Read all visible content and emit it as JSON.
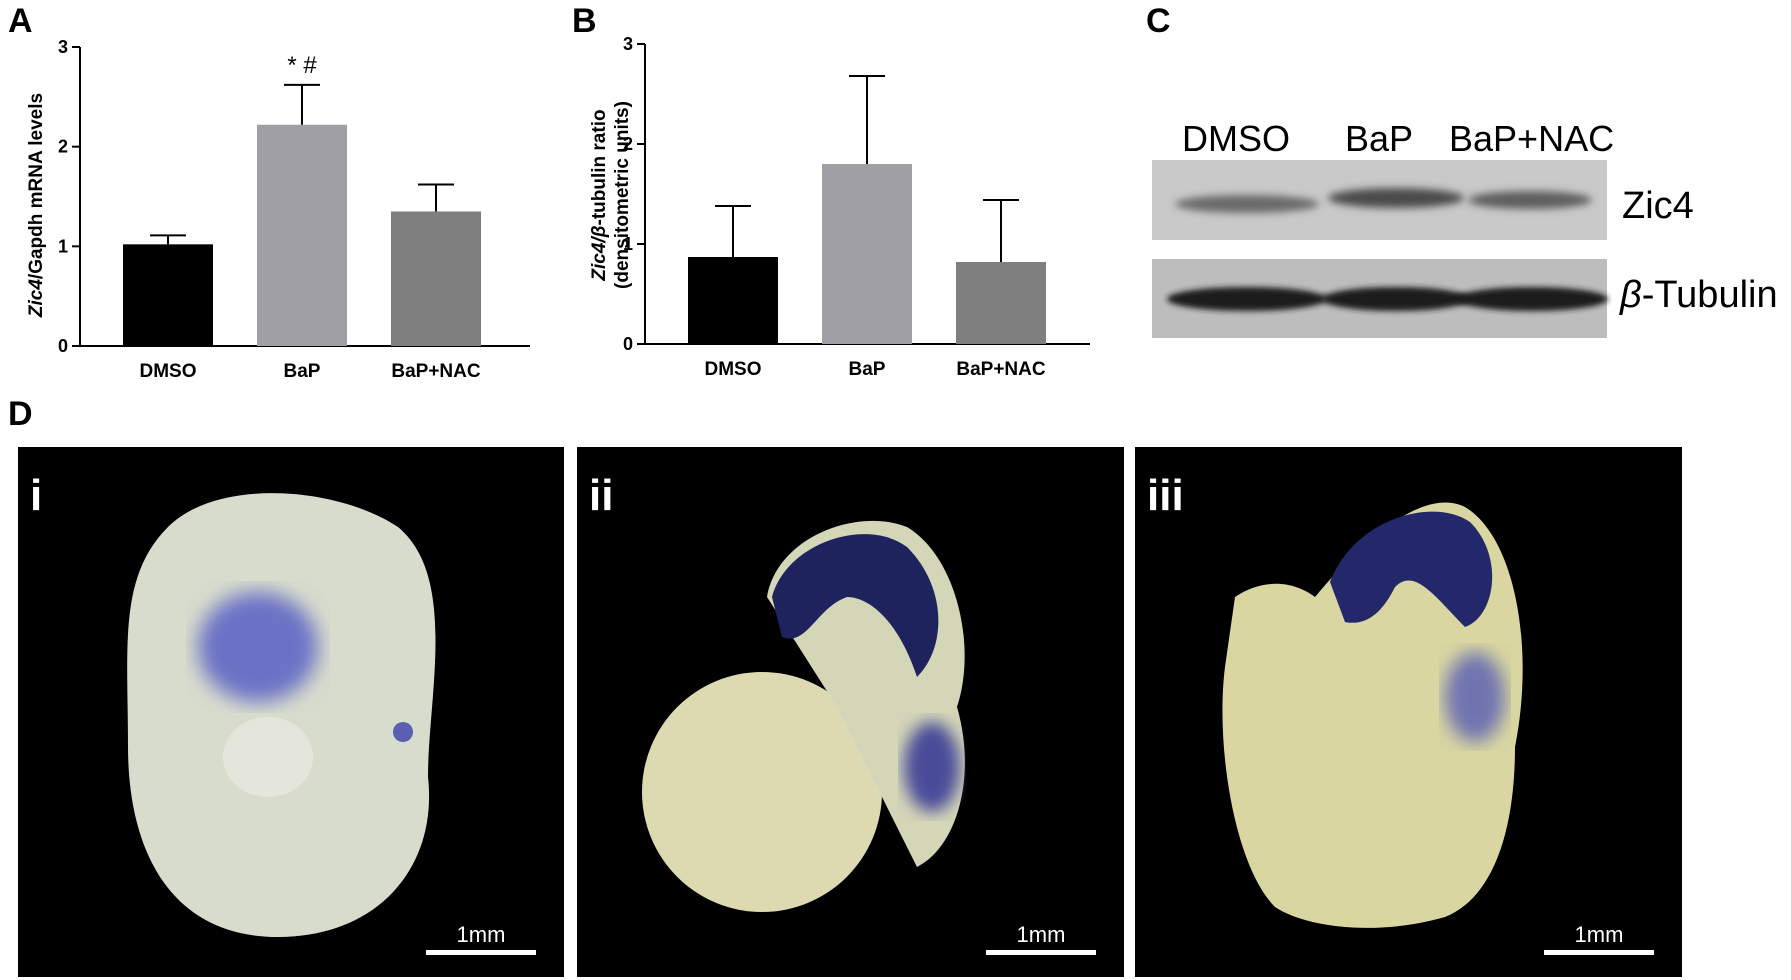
{
  "panels": {
    "a": "A",
    "b": "B",
    "c": "C",
    "d": "D"
  },
  "chart_data": [
    {
      "type": "bar",
      "categories": [
        "DMSO",
        "BaP",
        "BaP+NAC"
      ],
      "values": [
        1.02,
        2.22,
        1.35
      ],
      "errors": [
        0.09,
        0.4,
        0.27
      ],
      "ylabel_italic": "Zic4",
      "ylabel_rest": "/Gapdh mRNA levels",
      "ylim": [
        0,
        3
      ],
      "yticks": [
        "0",
        "1",
        "2",
        "3"
      ],
      "annotation": "* #",
      "bar_colors": [
        "#000000",
        "#a0a0a4",
        "#7f7f7f"
      ]
    },
    {
      "type": "bar",
      "categories": [
        "DMSO",
        "BaP",
        "BaP+NAC"
      ],
      "values": [
        0.87,
        1.8,
        0.82
      ],
      "errors": [
        0.51,
        0.88,
        0.62
      ],
      "ylabel_italic": "Zic4/β",
      "ylabel_rest": "-tubulin ratio",
      "ylabel_line2": "(densitometric units)",
      "ylim": [
        0,
        3
      ],
      "yticks": [
        "0",
        "1",
        "2",
        "3"
      ],
      "bar_colors": [
        "#000000",
        "#a0a0a4",
        "#7f7f7f"
      ]
    }
  ],
  "blot": {
    "lanes": [
      "DMSO",
      "BaP",
      "BaP+NAC"
    ],
    "band1": "Zic4",
    "band2_italic": "β",
    "band2_rest": "-Tubulin"
  },
  "photos": [
    {
      "label": "i",
      "scale": "1mm"
    },
    {
      "label": "ii",
      "scale": "1mm"
    },
    {
      "label": "iii",
      "scale": "1mm"
    }
  ]
}
